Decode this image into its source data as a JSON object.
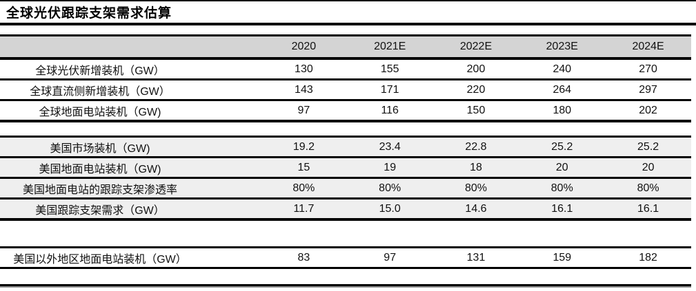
{
  "title": "全球光伏跟踪支架需求估算",
  "table": {
    "columns": [
      "2020",
      "2021E",
      "2022E",
      "2023E",
      "2024E"
    ],
    "rows": [
      {
        "label": "全球光伏新增装机（GW）",
        "values": [
          "130",
          "155",
          "200",
          "240",
          "270"
        ]
      },
      {
        "label": "全球直流侧新增装机（GW）",
        "values": [
          "143",
          "171",
          "220",
          "264",
          "297"
        ]
      },
      {
        "label": "全球地面电站装机（GW)",
        "values": [
          "97",
          "116",
          "150",
          "180",
          "202"
        ]
      },
      {
        "label": "美国市场装机（GW)",
        "values": [
          "19.2",
          "23.4",
          "22.8",
          "25.2",
          "25.2"
        ]
      },
      {
        "label": "美国地面电站装机（GW)",
        "values": [
          "15",
          "19",
          "18",
          "20",
          "20"
        ]
      },
      {
        "label": "美国地面电站的跟踪支架渗透率",
        "values": [
          "80%",
          "80%",
          "80%",
          "80%",
          "80%"
        ]
      },
      {
        "label": "美国跟踪支架需求（GW）",
        "values": [
          "11.7",
          "15.0",
          "14.6",
          "16.1",
          "16.1"
        ]
      },
      {
        "label": "美国以外地区地面电站装机（GW）",
        "values": [
          "83",
          "97",
          "131",
          "159",
          "182"
        ]
      }
    ]
  },
  "colors": {
    "header_bg": "#d4d4d4",
    "us_section_bg": "#efefef",
    "rule": "#000000",
    "text": "#111111"
  }
}
